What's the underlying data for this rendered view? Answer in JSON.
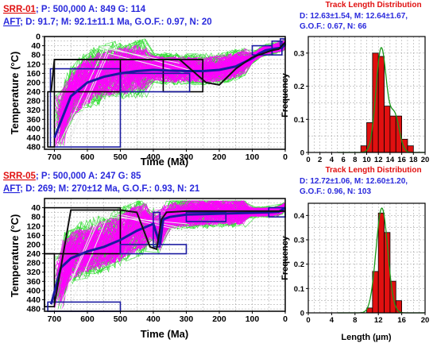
{
  "colors": {
    "good_paths": "#ff00ff",
    "acceptable_paths": "#33dd33",
    "weighted_mean_path": "#1a1aa0",
    "best_fit_path": "#111111",
    "constraint_box_black": "#000000",
    "constraint_box_blue": "#1a1aa0",
    "sample_label": "#e01010",
    "stats_text": "#2a2adc",
    "histogram_bar": "#e01010",
    "fit_curve": "#1a9a1a",
    "tld_title": "#e01010"
  },
  "chart_data": [
    {
      "type": "line",
      "sample": "SRR-01",
      "line1_rest": "; P: 500,000 A: 849 G: 114",
      "line2_rest": "; D: 91.7; M: 92.1±11.1 Ma, G.O.F.: 0.97, N: 20",
      "aft_label": "AFT",
      "xlabel": "Time (Ma)",
      "ylabel": "Temperature (°C)",
      "xlim": [
        730,
        0
      ],
      "ylim": [
        490,
        0
      ],
      "x_ticks": [
        "700",
        "600",
        "500",
        "400",
        "300",
        "200",
        "100",
        "0"
      ],
      "y_ticks": [
        "0",
        "40",
        "80",
        "120",
        "160",
        "200",
        "240",
        "280",
        "320",
        "360",
        "400",
        "440",
        "480"
      ],
      "grid": true,
      "series": [
        {
          "x": [
            700,
            650,
            600,
            550,
            500,
            450,
            400,
            350,
            300,
            250,
            200,
            150,
            100,
            80,
            60,
            40,
            20,
            10,
            0
          ],
          "y": [
            440,
            260,
            200,
            175,
            160,
            150,
            145,
            148,
            150,
            150,
            145,
            130,
            95,
            75,
            60,
            55,
            50,
            50,
            30
          ]
        },
        {
          "x": [
            710,
            700,
            690,
            500,
            400,
            320,
            280,
            240,
            200,
            150,
            100,
            60,
            40,
            20,
            10,
            0
          ],
          "y": [
            240,
            100,
            100,
            100,
            100,
            100,
            150,
            200,
            210,
            140,
            90,
            70,
            60,
            55,
            40,
            25
          ]
        }
      ]
    },
    {
      "type": "bar",
      "title": "Track Length Distribution",
      "stats_line1": "D: 12.63±1.54, M: 12.64±1.67,",
      "stats_line2": "G.O.F.: 0.67, N: 66",
      "xlabel": "",
      "ylabel": "Frequency",
      "xlim": [
        0,
        20
      ],
      "ylim": [
        0,
        0.35
      ],
      "x_ticks": [
        "0",
        "2",
        "4",
        "6",
        "8",
        "10",
        "12",
        "14",
        "16",
        "18",
        "20"
      ],
      "y_ticks": [
        "0",
        "0.1",
        "0.2",
        "0.3"
      ],
      "bins": [
        9,
        10,
        11,
        12,
        13,
        14,
        15,
        16,
        17
      ],
      "values": [
        0.02,
        0.09,
        0.3,
        0.29,
        0.14,
        0.11,
        0.11,
        0.04,
        0.02
      ]
    },
    {
      "type": "line",
      "sample": "SRR-05",
      "line1_rest": "; P: 500,000 A: 247 G: 85",
      "line2_rest": "; D: 269; M: 270±12 Ma, G.O.F.: 0.93, N: 21",
      "aft_label": "AFT",
      "xlabel": "Time (Ma)",
      "ylabel": "Temperature (°C)",
      "xlim": [
        730,
        0
      ],
      "ylim": [
        490,
        0
      ],
      "x_ticks": [
        "700",
        "600",
        "500",
        "400",
        "300",
        "200",
        "100",
        "0"
      ],
      "y_ticks": [
        "40",
        "80",
        "120",
        "160",
        "200",
        "240",
        "280",
        "320",
        "360",
        "400",
        "440",
        "480"
      ],
      "grid": true,
      "series": [
        {
          "x": [
            710,
            680,
            650,
            600,
            550,
            500,
            450,
            400,
            380,
            370,
            350,
            300,
            250,
            200,
            100,
            50,
            20,
            0
          ],
          "y": [
            460,
            300,
            260,
            230,
            210,
            180,
            140,
            110,
            200,
            90,
            80,
            70,
            68,
            66,
            62,
            60,
            58,
            40
          ]
        },
        {
          "x": [
            700,
            650,
            600,
            500,
            450,
            410,
            390,
            375,
            360,
            300,
            200,
            100,
            50,
            0
          ],
          "y": [
            460,
            50,
            50,
            50,
            60,
            210,
            220,
            90,
            60,
            55,
            55,
            55,
            55,
            55
          ]
        }
      ]
    },
    {
      "type": "bar",
      "title": "Track Length Distribution",
      "stats_line1": "D: 12.72±1.06, M: 12.60±1.20,",
      "stats_line2": "G.O.F.: 0.96, N: 103",
      "xlabel": "Length (µm)",
      "ylabel": "Frequency",
      "xlim": [
        0,
        20
      ],
      "ylim": [
        0,
        0.45
      ],
      "x_ticks": [
        "0",
        "4",
        "8",
        "12",
        "16",
        "20"
      ],
      "y_ticks": [
        "0",
        "0.1",
        "0.2",
        "0.3",
        "0.4"
      ],
      "bins": [
        10,
        11,
        12,
        13,
        14,
        15
      ],
      "values": [
        0.02,
        0.17,
        0.41,
        0.33,
        0.13,
        0.05
      ]
    }
  ]
}
